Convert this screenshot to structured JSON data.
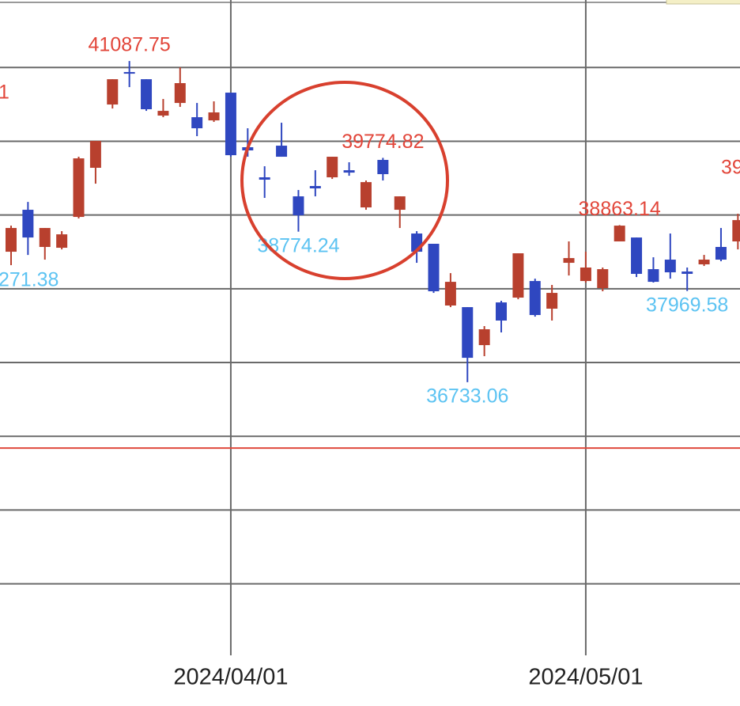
{
  "chart_data": {
    "type": "candlestick",
    "categories": [
      null,
      null,
      null,
      null,
      null,
      null,
      null,
      null,
      null,
      null,
      null,
      null,
      null,
      "2024/04/01",
      null,
      null,
      null,
      null,
      null,
      null,
      null,
      null,
      null,
      null,
      null,
      null,
      null,
      null,
      null,
      null,
      null,
      null,
      null,
      null,
      "2024/05/01",
      null,
      null,
      null,
      null,
      null,
      null,
      null,
      null,
      null
    ],
    "open": [
      38502,
      39071,
      38567,
      38556,
      38974,
      39640,
      40498,
      40938,
      40841,
      40348,
      40519,
      40326,
      40283,
      40659,
      39919,
      39511,
      39940,
      39253,
      39393,
      39511,
      39607,
      39103,
      39747,
      39071,
      38749,
      38610,
      37773,
      37751,
      37236,
      37815,
      37880,
      38105,
      37730,
      38352,
      38105,
      38009,
      38642,
      38695,
      38266,
      38395,
      38234,
      38331,
      38567,
      38642
    ],
    "high": [
      38856,
      39178,
      38824,
      38781,
      39790,
      40004,
      40841,
      41087.75,
      40841,
      40573,
      41002,
      40519,
      40541,
      40659,
      40176,
      39661,
      40251,
      39339,
      39607,
      39790,
      39715,
      39468,
      39774.82,
      39253,
      38781,
      38610,
      38212,
      37751,
      37494,
      37837,
      38481,
      38137,
      38052,
      38642,
      38502,
      38288,
      38863.14,
      38695,
      38427,
      38749,
      38288,
      38459,
      38824,
      39017
    ],
    "low": [
      38320,
      38459,
      38395,
      38534,
      38953,
      39425,
      40444,
      40734,
      40412,
      40326,
      40466,
      40069,
      40262,
      39790,
      39790,
      39232,
      39790,
      38774.24,
      39253,
      39489,
      39532,
      39071,
      39468,
      38824,
      38352,
      37944,
      37751,
      36733.06,
      37086,
      37408,
      37858,
      37622,
      37569,
      38180,
      38084,
      37966,
      38642,
      38159,
      38084,
      38137,
      37969.58,
      38309,
      38373,
      38534
    ],
    "close": [
      38824,
      38695,
      38824,
      38738,
      39768,
      40004,
      40841,
      40916,
      40434,
      40412,
      40788,
      40176,
      40391,
      39811,
      39876,
      39479,
      39790,
      38996,
      39361,
      39790,
      39575,
      39446,
      39554,
      39253,
      38502,
      37966,
      38094,
      37064,
      37451,
      37569,
      38481,
      37644,
      37944,
      38416,
      38288,
      38266,
      38856,
      38202,
      38094,
      38223,
      38202,
      38395,
      38395,
      38931
    ],
    "up_color": "#b8402e",
    "down_color": "#2f47c0",
    "high_label_color": "#e2463a",
    "low_label_color": "#5cc3f2",
    "ylim": [
      33030,
      41915
    ],
    "yticks": [
      34000,
      35000,
      36000,
      37000,
      38000,
      39000,
      40000,
      41000
    ],
    "grid": true,
    "reference_line": {
      "value": 35840,
      "color": "#e04a3c"
    },
    "cut_labels": [
      "1",
      "271.38",
      "39"
    ]
  }
}
